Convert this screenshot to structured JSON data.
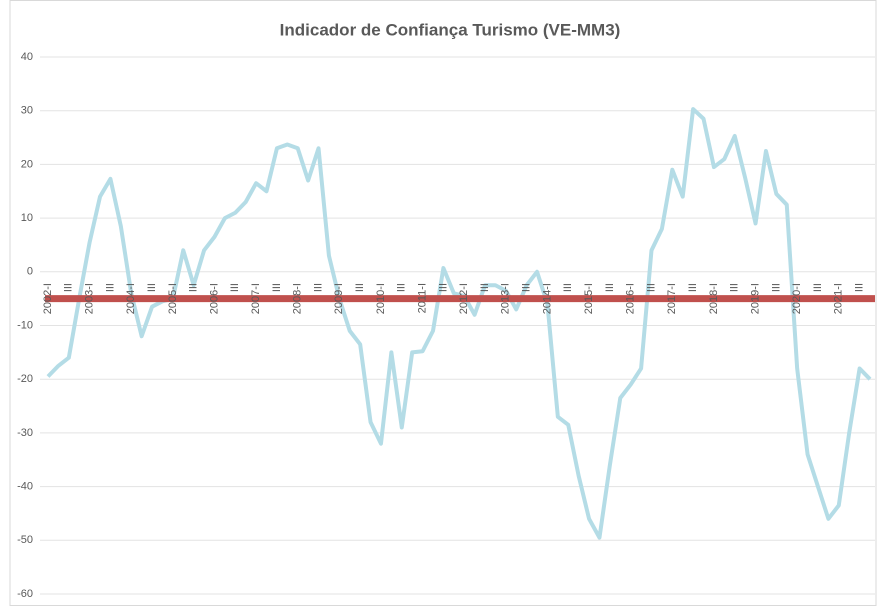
{
  "chart_data": {
    "type": "line",
    "title": "Indicador de Confiança Turismo (VE-MM3)",
    "categories": [
      "2002-I",
      null,
      "III",
      null,
      "2003-I",
      null,
      "III",
      null,
      "2004-I",
      null,
      "III",
      null,
      "2005-I",
      null,
      "III",
      null,
      "2006-I",
      null,
      "III",
      null,
      "2007-I",
      null,
      "III",
      null,
      "2008-I",
      null,
      "III",
      null,
      "2009-I",
      null,
      "III",
      null,
      "2010-I",
      null,
      "III",
      null,
      "2011-I",
      null,
      "III",
      null,
      "2012-I",
      null,
      "III",
      null,
      "2013-I",
      null,
      "III",
      null,
      "2014-I",
      null,
      "III",
      null,
      "2015-I",
      null,
      "III",
      null,
      "2016-I",
      null,
      "III",
      null,
      "2017-I",
      null,
      "III",
      null,
      "2018-I",
      null,
      "III",
      null,
      "2019-I",
      null,
      "III",
      null,
      "2020-I",
      null,
      "III",
      null,
      "2021-I",
      null,
      "III",
      null
    ],
    "series": [
      {
        "color": "#b4dce6",
        "values": [
          -19.5,
          -17.5,
          -16,
          -5,
          5.5,
          14,
          17.3,
          8.5,
          -4,
          -12,
          -6.5,
          -5.5,
          -5,
          4,
          -2.5,
          4,
          6.5,
          10,
          11,
          13,
          16.5,
          15,
          23,
          23.7,
          23,
          17,
          23,
          3,
          -5,
          -11,
          -13.5,
          -28,
          -32,
          -15,
          -29,
          -15,
          -14.8,
          -11,
          0.7,
          -4,
          -4.5,
          -8,
          -2.5,
          -2.5,
          -3.5,
          -7,
          -2.5,
          0,
          -6,
          -27,
          -28.5,
          -38,
          -46,
          -49.5,
          -36,
          -23.5,
          -21,
          -18,
          4,
          8,
          19,
          14,
          30.3,
          28.5,
          19.5,
          21,
          25.3,
          17.5,
          9,
          22.5,
          14.5,
          12.5,
          -18,
          -34,
          -40,
          -46,
          -43.5,
          -30,
          -18,
          -20
        ]
      }
    ],
    "reference_line": {
      "value": -5,
      "color": "#c0504d"
    },
    "ylim": [
      -60,
      40
    ],
    "yticks": [
      -60,
      -50,
      -40,
      -30,
      -20,
      -10,
      0,
      10,
      20,
      30,
      40
    ],
    "grid": true
  }
}
